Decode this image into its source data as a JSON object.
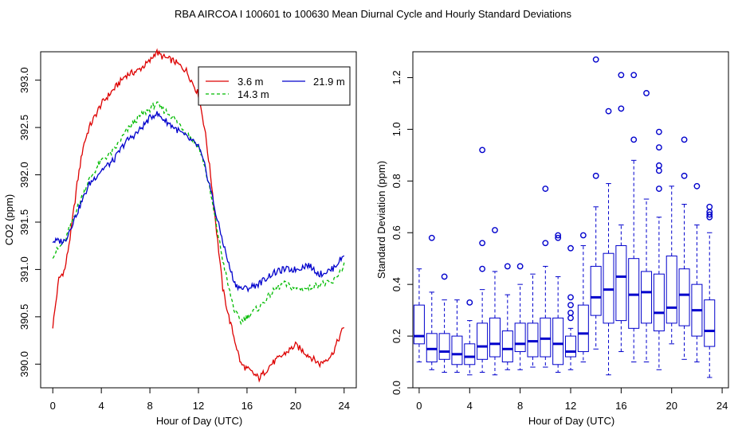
{
  "title": "RBA   AIRCOA I   100601 to 100630   Mean Diurnal Cycle and Hourly Standard Deviations",
  "chart_data": [
    {
      "type": "line",
      "xlabel": "Hour of Day (UTC)",
      "ylabel": "CO2 (ppm)",
      "xlim": [
        -1,
        25
      ],
      "ylim": [
        389.75,
        393.3
      ],
      "xticks": [
        "0",
        "4",
        "8",
        "12",
        "16",
        "20",
        "24"
      ],
      "yticks": [
        "390.0",
        "390.5",
        "391.0",
        "391.5",
        "392.0",
        "392.5",
        "393.0"
      ],
      "legend_position": "top-right",
      "series": [
        {
          "name": "3.6 m",
          "color": "#dd0000",
          "dash": "",
          "x": [
            0,
            0.5,
            1,
            1.5,
            2,
            2.5,
            3,
            4,
            5,
            6,
            7,
            8,
            8.5,
            9,
            10,
            11,
            12,
            12.5,
            13,
            13.5,
            14,
            14.5,
            15,
            15.5,
            16,
            17,
            18,
            19,
            20,
            21,
            22,
            23,
            24
          ],
          "y": [
            390.4,
            390.9,
            391.0,
            391.4,
            391.9,
            392.3,
            392.5,
            392.75,
            392.9,
            393.05,
            393.1,
            393.2,
            393.3,
            393.25,
            393.2,
            393.1,
            392.85,
            392.5,
            392.0,
            391.4,
            390.8,
            390.5,
            390.25,
            390.0,
            389.95,
            389.85,
            390.0,
            390.1,
            390.2,
            390.1,
            390.0,
            390.1,
            390.4
          ]
        },
        {
          "name": "14.3 m",
          "color": "#00bb00",
          "dash": "4,3",
          "x": [
            0,
            1,
            2,
            3,
            4,
            5,
            6,
            7,
            8,
            8.5,
            9,
            10,
            11,
            12,
            12.5,
            13,
            13.5,
            14,
            14.5,
            15,
            15.5,
            16,
            17,
            18,
            19,
            20,
            21,
            22,
            23,
            24
          ],
          "y": [
            391.15,
            391.3,
            391.65,
            391.95,
            392.15,
            392.25,
            392.45,
            392.6,
            392.7,
            392.75,
            392.7,
            392.6,
            392.45,
            392.3,
            392.1,
            391.8,
            391.45,
            391.1,
            390.8,
            390.55,
            390.45,
            390.5,
            390.6,
            390.75,
            390.85,
            390.8,
            390.8,
            390.85,
            390.85,
            391.05
          ]
        },
        {
          "name": "21.9 m",
          "color": "#0000cc",
          "dash": "",
          "x": [
            0,
            1,
            2,
            3,
            4,
            5,
            6,
            7,
            8,
            8.5,
            9,
            10,
            11,
            12,
            12.5,
            13,
            13.5,
            14,
            14.5,
            15,
            15.5,
            16,
            17,
            18,
            19,
            20,
            21,
            22,
            23,
            24
          ],
          "y": [
            391.3,
            391.3,
            391.6,
            391.9,
            392.05,
            392.15,
            392.35,
            392.45,
            392.6,
            392.65,
            392.6,
            392.5,
            392.4,
            392.3,
            392.1,
            391.85,
            391.55,
            391.3,
            391.05,
            390.85,
            390.8,
            390.8,
            390.85,
            390.95,
            391.0,
            391.0,
            391.05,
            390.95,
            391.0,
            391.15
          ]
        }
      ]
    },
    {
      "type": "box",
      "xlabel": "Hour of Day (UTC)",
      "ylabel": "Standard Deviation (ppm)",
      "xlim": [
        -0.5,
        24.5
      ],
      "ylim": [
        0,
        1.3
      ],
      "xticks": [
        "0",
        "4",
        "8",
        "12",
        "16",
        "20",
        "24"
      ],
      "yticks": [
        "0.0",
        "0.2",
        "0.4",
        "0.6",
        "0.8",
        "1.0",
        "1.2"
      ],
      "color": "#0000cc",
      "boxes": [
        {
          "hour": 0,
          "min": 0.1,
          "q1": 0.17,
          "median": 0.2,
          "q3": 0.32,
          "max": 0.46,
          "outliers": []
        },
        {
          "hour": 1,
          "min": 0.07,
          "q1": 0.1,
          "median": 0.15,
          "q3": 0.21,
          "max": 0.37,
          "outliers": [
            0.58
          ]
        },
        {
          "hour": 2,
          "min": 0.06,
          "q1": 0.11,
          "median": 0.14,
          "q3": 0.21,
          "max": 0.34,
          "outliers": [
            0.43
          ]
        },
        {
          "hour": 3,
          "min": 0.06,
          "q1": 0.09,
          "median": 0.13,
          "q3": 0.2,
          "max": 0.34,
          "outliers": []
        },
        {
          "hour": 4,
          "min": 0.05,
          "q1": 0.09,
          "median": 0.12,
          "q3": 0.17,
          "max": 0.26,
          "outliers": [
            0.33
          ]
        },
        {
          "hour": 5,
          "min": 0.06,
          "q1": 0.11,
          "median": 0.16,
          "q3": 0.25,
          "max": 0.38,
          "outliers": [
            0.46,
            0.56,
            0.92
          ]
        },
        {
          "hour": 6,
          "min": 0.05,
          "q1": 0.12,
          "median": 0.17,
          "q3": 0.27,
          "max": 0.45,
          "outliers": [
            0.61
          ]
        },
        {
          "hour": 7,
          "min": 0.07,
          "q1": 0.1,
          "median": 0.15,
          "q3": 0.22,
          "max": 0.36,
          "outliers": [
            0.47
          ]
        },
        {
          "hour": 8,
          "min": 0.07,
          "q1": 0.14,
          "median": 0.17,
          "q3": 0.25,
          "max": 0.4,
          "outliers": [
            0.47
          ]
        },
        {
          "hour": 9,
          "min": 0.08,
          "q1": 0.12,
          "median": 0.18,
          "q3": 0.25,
          "max": 0.44,
          "outliers": []
        },
        {
          "hour": 10,
          "min": 0.08,
          "q1": 0.12,
          "median": 0.19,
          "q3": 0.27,
          "max": 0.47,
          "outliers": [
            0.56,
            0.77
          ]
        },
        {
          "hour": 11,
          "min": 0.06,
          "q1": 0.09,
          "median": 0.17,
          "q3": 0.27,
          "max": 0.43,
          "outliers": [
            0.58,
            0.59
          ]
        },
        {
          "hour": 12,
          "min": 0.07,
          "q1": 0.12,
          "median": 0.14,
          "q3": 0.2,
          "max": 0.23,
          "outliers": [
            0.27,
            0.29,
            0.32,
            0.35,
            0.54
          ]
        },
        {
          "hour": 13,
          "min": 0.1,
          "q1": 0.14,
          "median": 0.21,
          "q3": 0.32,
          "max": 0.55,
          "outliers": [
            0.59
          ]
        },
        {
          "hour": 14,
          "min": 0.15,
          "q1": 0.28,
          "median": 0.35,
          "q3": 0.47,
          "max": 0.7,
          "outliers": [
            0.82,
            1.27
          ]
        },
        {
          "hour": 15,
          "min": 0.05,
          "q1": 0.25,
          "median": 0.38,
          "q3": 0.52,
          "max": 0.79,
          "outliers": [
            1.07
          ]
        },
        {
          "hour": 16,
          "min": 0.14,
          "q1": 0.26,
          "median": 0.43,
          "q3": 0.55,
          "max": 0.63,
          "outliers": [
            1.08,
            1.21
          ]
        },
        {
          "hour": 17,
          "min": 0.1,
          "q1": 0.23,
          "median": 0.36,
          "q3": 0.5,
          "max": 0.88,
          "outliers": [
            0.96,
            1.21
          ]
        },
        {
          "hour": 18,
          "min": 0.1,
          "q1": 0.25,
          "median": 0.37,
          "q3": 0.45,
          "max": 0.73,
          "outliers": [
            1.14
          ]
        },
        {
          "hour": 19,
          "min": 0.07,
          "q1": 0.22,
          "median": 0.29,
          "q3": 0.44,
          "max": 0.66,
          "outliers": [
            0.77,
            0.84,
            0.86,
            0.93,
            0.99
          ]
        },
        {
          "hour": 20,
          "min": 0.17,
          "q1": 0.25,
          "median": 0.31,
          "q3": 0.51,
          "max": 0.78,
          "outliers": []
        },
        {
          "hour": 21,
          "min": 0.11,
          "q1": 0.24,
          "median": 0.36,
          "q3": 0.46,
          "max": 0.71,
          "outliers": [
            0.82,
            0.96
          ]
        },
        {
          "hour": 22,
          "min": 0.1,
          "q1": 0.2,
          "median": 0.3,
          "q3": 0.4,
          "max": 0.63,
          "outliers": [
            0.78
          ]
        },
        {
          "hour": 23,
          "min": 0.04,
          "q1": 0.16,
          "median": 0.22,
          "q3": 0.34,
          "max": 0.6,
          "outliers": [
            0.66,
            0.67,
            0.68,
            0.7
          ]
        }
      ]
    }
  ]
}
